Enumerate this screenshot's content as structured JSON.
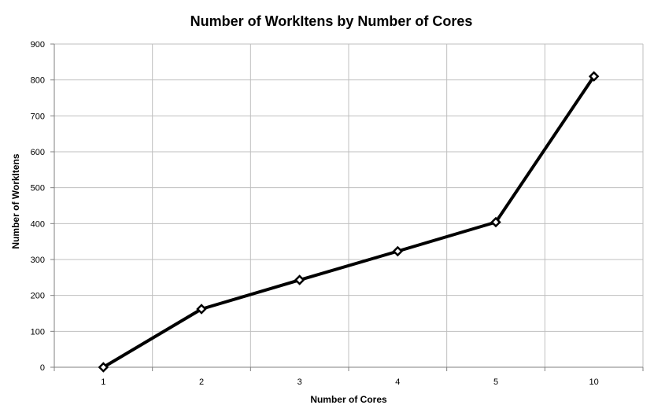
{
  "chart_data": {
    "type": "line",
    "title": "Number of WorkItens by Number of Cores",
    "xlabel": "Number of Cores",
    "ylabel": "Number of WorkItens",
    "categories": [
      "1",
      "2",
      "3",
      "4",
      "5",
      "10"
    ],
    "series": [
      {
        "values": [
          0,
          162,
          243,
          323,
          404,
          810
        ],
        "color": "#000000",
        "marker": "diamond"
      }
    ],
    "ylim": [
      0,
      900
    ],
    "yticks": [
      0,
      100,
      200,
      300,
      400,
      500,
      600,
      700,
      800,
      900
    ],
    "grid": true,
    "legend": "none"
  }
}
